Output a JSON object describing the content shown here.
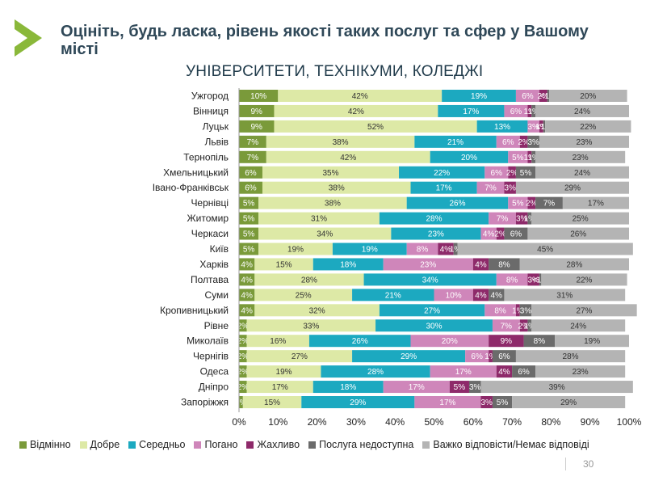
{
  "slide": {
    "title": "Оцініть, будь ласка, рівень якості таких послуг та сфер у Вашому місті",
    "page_number": "30"
  },
  "chart_data": {
    "type": "bar",
    "orientation": "horizontal",
    "stacked": true,
    "title": "УНІВЕРСИТЕТИ, ТЕХНІКУМИ, КОЛЕДЖІ",
    "xlim": [
      0,
      100
    ],
    "x_ticks": [
      "0%",
      "10%",
      "20%",
      "30%",
      "40%",
      "50%",
      "60%",
      "70%",
      "80%",
      "90%",
      "100%"
    ],
    "legend_position": "bottom",
    "grid": false,
    "categories": [
      "Ужгород",
      "Вінниця",
      "Луцьк",
      "Львів",
      "Тернопіль",
      "Хмельницький",
      "Івано-Франківськ",
      "Чернівці",
      "Житомир",
      "Черкаси",
      "Київ",
      "Харків",
      "Полтава",
      "Суми",
      "Кропивницький",
      "Рівне",
      "Миколаїв",
      "Чернігів",
      "Одеса",
      "Дніпро",
      "Запоріжжя"
    ],
    "series": [
      {
        "name": "Відмінно",
        "color": "#7a9a3a",
        "values": [
          10,
          9,
          9,
          7,
          7,
          6,
          6,
          5,
          5,
          5,
          5,
          4,
          4,
          4,
          4,
          2,
          2,
          2,
          2,
          2,
          1
        ],
        "labels": [
          "10%",
          "9%",
          "9%",
          "7%",
          "7%",
          "6%",
          "6%",
          "5%",
          "5%",
          "5%",
          "5%",
          "4%",
          "4%",
          "4%",
          "4%",
          "2%",
          "2%",
          "2%",
          "2%",
          "2%",
          "1%"
        ]
      },
      {
        "name": "Добре",
        "color": "#dde9a6",
        "values": [
          42,
          42,
          52,
          38,
          42,
          35,
          38,
          38,
          31,
          34,
          19,
          15,
          28,
          25,
          32,
          33,
          16,
          27,
          19,
          17,
          15
        ],
        "labels": [
          "42%",
          "42%",
          "52%",
          "38%",
          "42%",
          "35%",
          "38%",
          "38%",
          "31%",
          "34%",
          "19%",
          "15%",
          "28%",
          "25%",
          "32%",
          "33%",
          "16%",
          "27%",
          "19%",
          "17%",
          "15%"
        ]
      },
      {
        "name": "Середньо",
        "color": "#1ca9c0",
        "values": [
          19,
          17,
          13,
          21,
          20,
          22,
          17,
          26,
          28,
          23,
          19,
          18,
          34,
          21,
          27,
          30,
          26,
          29,
          28,
          18,
          29
        ],
        "labels": [
          "19%",
          "17%",
          "13%",
          "21%",
          "20%",
          "22%",
          "17%",
          "26%",
          "28%",
          "23%",
          "19%",
          "18%",
          "34%",
          "21%",
          "27%",
          "30%",
          "26%",
          "29%",
          "28%",
          "18%",
          "29%"
        ]
      },
      {
        "name": "Погано",
        "color": "#cf86ba",
        "values": [
          6,
          6,
          3,
          6,
          5,
          6,
          7,
          5,
          7,
          4,
          8,
          23,
          8,
          10,
          8,
          7,
          20,
          6,
          17,
          17,
          17
        ],
        "labels": [
          "6%",
          "6%",
          "3%",
          "6%",
          "5%",
          "6%",
          "7%",
          "5%",
          "7%",
          "4%",
          "8%",
          "23%",
          "8%",
          "10%",
          "8%",
          "7%",
          "20%",
          "6%",
          "17%",
          "17%",
          "17%"
        ]
      },
      {
        "name": "Жахливо",
        "color": "#8e2a6a",
        "values": [
          2,
          1,
          1,
          2,
          1,
          2,
          3,
          2,
          3,
          2,
          4,
          4,
          3,
          4,
          1,
          2,
          9,
          1,
          4,
          5,
          3
        ],
        "labels": [
          "2%",
          "1%",
          "1%",
          "2%",
          "1%",
          "2%",
          "3%",
          "2%",
          "3%",
          "2%",
          "4%",
          "4%",
          "3%",
          "4%",
          "1%",
          "2%",
          "9%",
          "1%",
          "4%",
          "5%",
          "3%"
        ]
      },
      {
        "name": "Послуга недоступна",
        "color": "#6b6b6b",
        "values": [
          0.5,
          1,
          0.5,
          3,
          1,
          5,
          0,
          7,
          1,
          6,
          1,
          8,
          0.5,
          4,
          3,
          1,
          8,
          6,
          6,
          3,
          5
        ],
        "labels": [
          "<1%",
          "1%",
          "<1%",
          "3%",
          "1%",
          "5%",
          "",
          "7%",
          "1%",
          "6%",
          "1%",
          "8%",
          "<1%",
          "4%",
          "3%",
          "1%",
          "8%",
          "6%",
          "6%",
          "3%",
          "5%"
        ]
      },
      {
        "name": "Важко відповісти/Немає відповіді",
        "color": "#b4b4b4",
        "values": [
          20,
          24,
          22,
          23,
          23,
          24,
          29,
          17,
          25,
          26,
          45,
          28,
          22,
          31,
          27,
          24,
          19,
          28,
          23,
          39,
          29
        ],
        "labels": [
          "20%",
          "24%",
          "22%",
          "23%",
          "23%",
          "24%",
          "29%",
          "17%",
          "25%",
          "26%",
          "45%",
          "28%",
          "22%",
          "31%",
          "27%",
          "24%",
          "19%",
          "28%",
          "23%",
          "39%",
          "29%"
        ]
      }
    ]
  }
}
